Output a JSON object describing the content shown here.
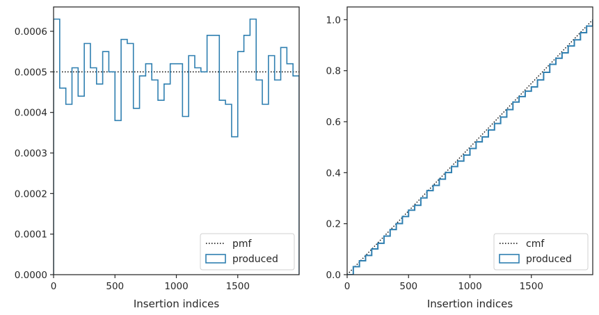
{
  "chart_data": [
    {
      "type": "histogram",
      "panel": "left",
      "xlabel": "Insertion indices",
      "ylabel": "",
      "xlim": [
        0,
        2000
      ],
      "ylim": [
        0,
        0.00066
      ],
      "xticks": [
        0,
        500,
        1000,
        1500
      ],
      "xtick_labels": [
        "0",
        "500",
        "1000",
        "1500"
      ],
      "yticks": [
        0,
        0.0001,
        0.0002,
        0.0003,
        0.0004,
        0.0005,
        0.0006
      ],
      "ytick_labels": [
        "0.0000",
        "0.0001",
        "0.0002",
        "0.0003",
        "0.0004",
        "0.0005",
        "0.0006"
      ],
      "grid": false,
      "legend_position": "lower-right",
      "reference_line": {
        "name": "pmf",
        "value": 0.0005,
        "style": "dotted",
        "color": "#000000"
      },
      "series": [
        {
          "name": "produced",
          "color": "#2f7fb0",
          "bin_edges": [
            0,
            50,
            100,
            150,
            200,
            250,
            300,
            350,
            400,
            450,
            500,
            550,
            600,
            650,
            700,
            750,
            800,
            850,
            900,
            950,
            1000,
            1050,
            1100,
            1150,
            1200,
            1250,
            1300,
            1350,
            1400,
            1450,
            1500,
            1550,
            1600,
            1650,
            1700,
            1750,
            1800,
            1850,
            1900,
            1950,
            2000
          ],
          "values": [
            0.00063,
            0.00046,
            0.00042,
            0.00051,
            0.00044,
            0.00057,
            0.00051,
            0.00047,
            0.00055,
            0.0005,
            0.00038,
            0.00058,
            0.00057,
            0.00041,
            0.00049,
            0.00052,
            0.00048,
            0.00043,
            0.00047,
            0.00052,
            0.00052,
            0.00039,
            0.00054,
            0.00051,
            0.0005,
            0.00059,
            0.00059,
            0.00043,
            0.00042,
            0.00034,
            0.00055,
            0.00059,
            0.00063,
            0.00048,
            0.00042,
            0.00054,
            0.00048,
            0.00056,
            0.00052,
            0.00049
          ]
        }
      ]
    },
    {
      "type": "line",
      "panel": "right",
      "xlabel": "Insertion indices",
      "ylabel": "",
      "xlim": [
        0,
        2000
      ],
      "ylim": [
        0,
        1.05
      ],
      "xticks": [
        0,
        500,
        1000,
        1500
      ],
      "xtick_labels": [
        "0",
        "500",
        "1000",
        "1500"
      ],
      "yticks": [
        0,
        0.2,
        0.4,
        0.6,
        0.8,
        1.0
      ],
      "ytick_labels": [
        "0.0",
        "0.2",
        "0.4",
        "0.6",
        "0.8",
        "1.0"
      ],
      "grid": false,
      "legend_position": "lower-right",
      "series": [
        {
          "name": "cmf",
          "style": "dotted",
          "color": "#000000",
          "x": [
            0,
            2000
          ],
          "y": [
            0,
            1.0
          ]
        },
        {
          "name": "produced",
          "style": "step",
          "color": "#2f7fb0",
          "x": [
            0,
            50,
            100,
            150,
            200,
            250,
            300,
            350,
            400,
            450,
            500,
            550,
            600,
            650,
            700,
            750,
            800,
            850,
            900,
            950,
            1000,
            1050,
            1100,
            1150,
            1200,
            1250,
            1300,
            1350,
            1400,
            1450,
            1500,
            1550,
            1600,
            1650,
            1700,
            1750,
            1800,
            1850,
            1900,
            1950,
            2000
          ],
          "y": [
            0,
            0.0315,
            0.0545,
            0.0755,
            0.101,
            0.123,
            0.1515,
            0.177,
            0.2005,
            0.228,
            0.253,
            0.272,
            0.301,
            0.3295,
            0.35,
            0.3745,
            0.4005,
            0.424,
            0.4455,
            0.469,
            0.495,
            0.521,
            0.5405,
            0.5675,
            0.593,
            0.618,
            0.6475,
            0.677,
            0.6985,
            0.7195,
            0.7365,
            0.764,
            0.7935,
            0.825,
            0.849,
            0.87,
            0.897,
            0.921,
            0.949,
            0.975,
            1.0
          ]
        }
      ]
    }
  ]
}
